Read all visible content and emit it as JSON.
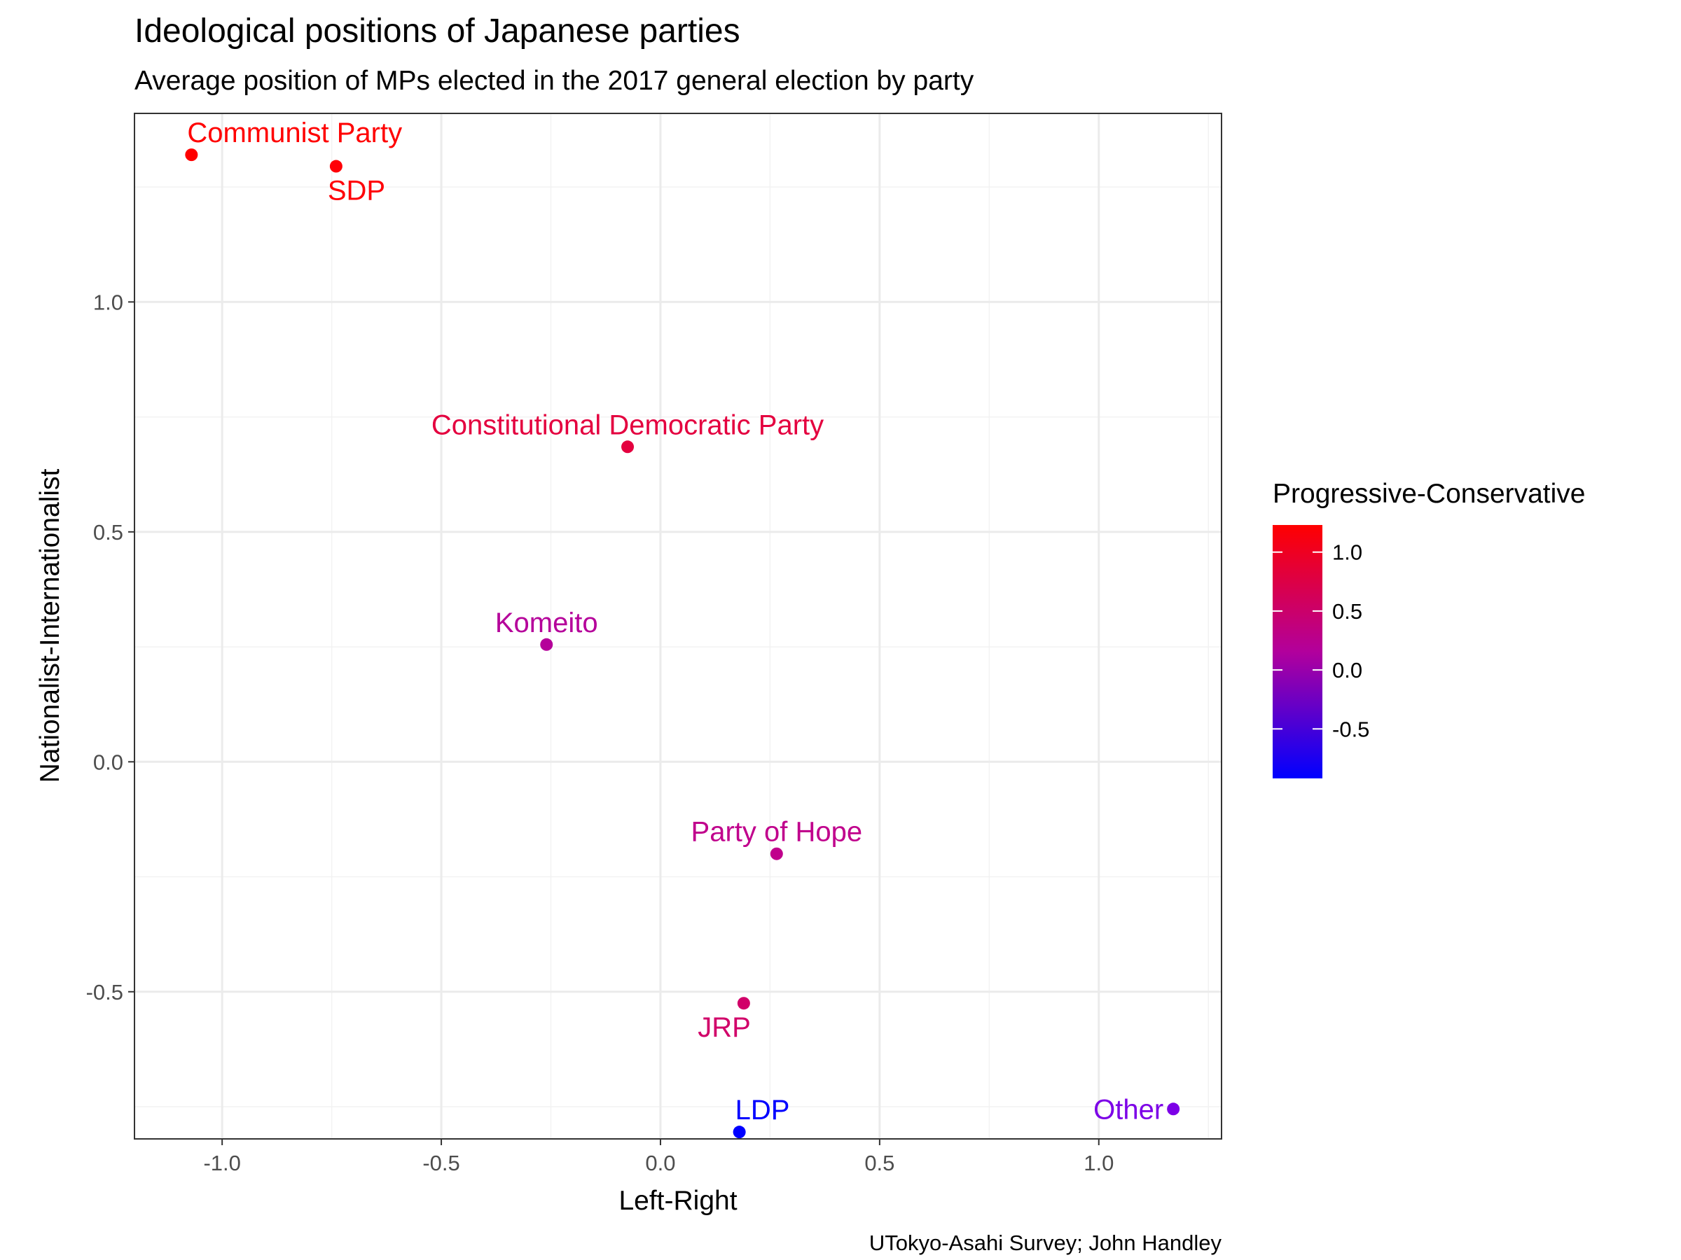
{
  "chart_data": {
    "type": "scatter",
    "title": "Ideological positions of Japanese parties",
    "subtitle": "Average position of MPs elected in the 2017 general election by party",
    "caption": "UTokyo-Asahi Survey; John Handley",
    "xlabel": "Left-Right",
    "ylabel": "Nationalist-Internationalist",
    "xlim": [
      -1.2,
      1.28
    ],
    "ylim": [
      -0.82,
      1.41
    ],
    "xticks": [
      -1.0,
      -0.5,
      0.0,
      0.5,
      1.0
    ],
    "xtick_labels": [
      "-1.0",
      "-0.5",
      "0.0",
      "0.5",
      "1.0"
    ],
    "yticks": [
      -0.5,
      0.0,
      0.5,
      1.0
    ],
    "ytick_labels": [
      "-0.5",
      "0.0",
      "0.5",
      "1.0"
    ],
    "grid": true,
    "legend": {
      "title": "Progressive-Conservative",
      "placement": "right",
      "type": "colorbar",
      "range": [
        -0.92,
        1.23
      ],
      "ticks": [
        1.0,
        0.5,
        0.0,
        -0.5
      ],
      "tick_labels": [
        "1.0",
        "0.5",
        "0.0",
        "-0.5"
      ],
      "low_color": "#0000ff",
      "high_color": "#ff0000"
    },
    "points": [
      {
        "label": "Communist Party",
        "x": -1.07,
        "y": 1.32,
        "color_value": 1.23,
        "color": "#ff0000",
        "label_anchor": "above-right"
      },
      {
        "label": "SDP",
        "x": -0.74,
        "y": 1.295,
        "color_value": 1.2,
        "color": "#ff0007",
        "label_anchor": "below-right"
      },
      {
        "label": "Constitutional Democratic Party",
        "x": -0.075,
        "y": 0.685,
        "color_value": 0.62,
        "color": "#e4003f",
        "label_anchor": "above"
      },
      {
        "label": "Komeito",
        "x": -0.26,
        "y": 0.255,
        "color_value": -0.05,
        "color": "#b5009a",
        "label_anchor": "above"
      },
      {
        "label": "Party of Hope",
        "x": 0.265,
        "y": -0.2,
        "color_value": 0.05,
        "color": "#c0008c",
        "label_anchor": "above"
      },
      {
        "label": "JRP",
        "x": 0.19,
        "y": -0.525,
        "color_value": 0.28,
        "color": "#d10069",
        "label_anchor": "below-left"
      },
      {
        "label": "LDP",
        "x": 0.18,
        "y": -0.805,
        "color_value": -0.92,
        "color": "#0000ff",
        "label_anchor": "above-right"
      },
      {
        "label": "Other",
        "x": 1.17,
        "y": -0.755,
        "color_value": -0.6,
        "color": "#7c00e7",
        "label_anchor": "left"
      }
    ]
  }
}
